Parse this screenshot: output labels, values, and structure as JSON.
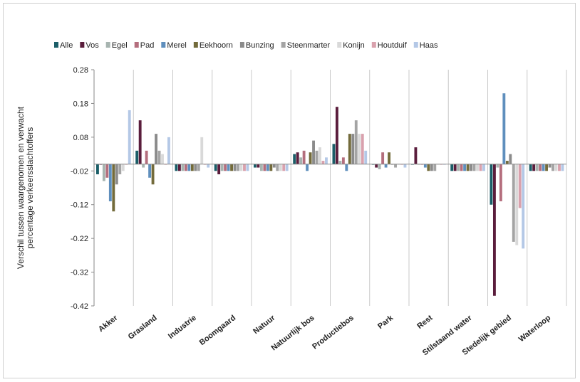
{
  "chart_data": {
    "type": "bar",
    "title": "",
    "xlabel": "",
    "ylabel": "Verschil tussen waargenomen en verwacht percentage verkeersslachtoffers",
    "ylabel_lines": [
      "Verschil tussen waargenomen en verwacht",
      "percentage verkeersslachtoffers"
    ],
    "ylim": [
      -0.42,
      0.28
    ],
    "yticks": [
      0.28,
      0.18,
      0.08,
      -0.02,
      -0.12,
      -0.22,
      -0.32,
      -0.42
    ],
    "ytick_labels": [
      "0.28",
      "0.18",
      "0.08",
      "-0.02",
      "-0.12",
      "-0.22",
      "-0.32",
      "-0.42"
    ],
    "legend_position": "top",
    "grid": false,
    "categories": [
      "Akker",
      "Grasland",
      "Industrie",
      "Boomgaard",
      "Natuur",
      "Natuurlijk bos",
      "Productiebos",
      "Park",
      "Rest",
      "Stilstaand water",
      "Stedelijk gebied",
      "Waterloop"
    ],
    "series": [
      {
        "name": "Alle",
        "color": "#1b5e68",
        "values": [
          -0.03,
          0.04,
          -0.02,
          -0.02,
          -0.01,
          0.03,
          0.06,
          0.0,
          0.0,
          -0.02,
          -0.12,
          -0.02
        ]
      },
      {
        "name": "Vos",
        "color": "#5a1d3c",
        "values": [
          0.0,
          0.13,
          -0.02,
          -0.03,
          -0.01,
          0.035,
          0.17,
          -0.01,
          0.05,
          -0.02,
          -0.39,
          -0.02
        ]
      },
      {
        "name": "Egel",
        "color": "#a7b4b0",
        "values": [
          -0.05,
          -0.01,
          -0.02,
          -0.02,
          -0.02,
          0.02,
          0.01,
          -0.015,
          0.0,
          -0.02,
          -0.01,
          -0.02
        ]
      },
      {
        "name": "Pad",
        "color": "#b46e7d",
        "values": [
          -0.04,
          0.04,
          -0.02,
          -0.02,
          -0.02,
          0.04,
          0.02,
          0.035,
          0.0,
          -0.02,
          -0.11,
          -0.02
        ]
      },
      {
        "name": "Merel",
        "color": "#5f8fbd",
        "values": [
          -0.11,
          -0.04,
          -0.02,
          -0.02,
          -0.02,
          -0.02,
          -0.02,
          -0.01,
          -0.01,
          -0.02,
          0.21,
          -0.02
        ]
      },
      {
        "name": "Eekhoorn",
        "color": "#736b3b",
        "values": [
          -0.14,
          -0.06,
          -0.02,
          -0.02,
          -0.02,
          0.035,
          0.09,
          0.035,
          -0.02,
          -0.02,
          0.01,
          -0.02
        ]
      },
      {
        "name": "Bunzing",
        "color": "#8b8b8b",
        "values": [
          -0.06,
          0.09,
          -0.02,
          -0.02,
          -0.01,
          0.07,
          0.09,
          0.0,
          -0.02,
          -0.02,
          0.03,
          -0.01
        ]
      },
      {
        "name": "Steenmarter",
        "color": "#a4a4a4",
        "values": [
          -0.03,
          0.04,
          -0.02,
          -0.02,
          -0.02,
          0.04,
          0.13,
          -0.01,
          -0.02,
          -0.02,
          -0.23,
          -0.02
        ]
      },
      {
        "name": "Konijn",
        "color": "#d9d9d9",
        "values": [
          -0.02,
          0.03,
          0.08,
          -0.02,
          -0.02,
          0.05,
          0.09,
          0.0,
          0.0,
          -0.02,
          -0.24,
          -0.02
        ]
      },
      {
        "name": "Houtduif",
        "color": "#d9a1ad",
        "values": [
          0.0,
          0.0,
          0.0,
          -0.02,
          -0.02,
          0.01,
          0.09,
          0.0,
          0.0,
          -0.02,
          -0.13,
          -0.02
        ]
      },
      {
        "name": "Haas",
        "color": "#b4c8e6",
        "values": [
          0.16,
          0.08,
          -0.01,
          -0.02,
          -0.02,
          0.02,
          0.04,
          -0.01,
          0.0,
          -0.02,
          -0.25,
          -0.02
        ]
      }
    ]
  }
}
